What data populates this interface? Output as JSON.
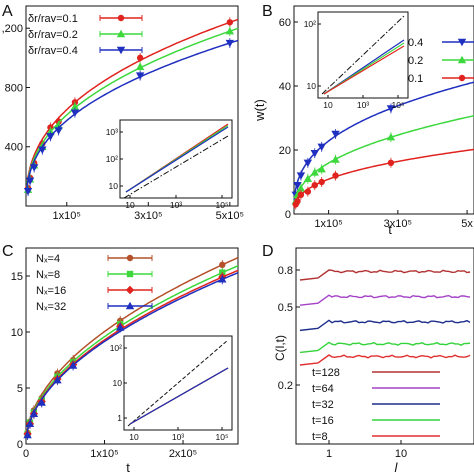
{
  "chart_data": [
    {
      "panel": "A",
      "type": "line",
      "xlabel": "",
      "ylabel": "",
      "x_ticks": [
        "1x10⁵",
        "3x10⁵",
        "5x10⁵"
      ],
      "y_ticks": [
        "400",
        "800",
        ",200"
      ],
      "xlim": [
        0,
        520000
      ],
      "ylim": [
        0,
        1350
      ],
      "series": [
        {
          "name": "δr/rav=0.1",
          "color": "#e0231f",
          "marker": "circle",
          "x": [
            5000,
            10000,
            20000,
            40000,
            60000,
            80000,
            120000,
            280000,
            500000
          ],
          "y": [
            120,
            190,
            290,
            420,
            530,
            570,
            700,
            1000,
            1240
          ]
        },
        {
          "name": "δr/rav=0.2",
          "color": "#3cd83c",
          "marker": "triangle-up",
          "x": [
            5000,
            10000,
            20000,
            40000,
            60000,
            80000,
            120000,
            280000,
            500000
          ],
          "y": [
            110,
            180,
            275,
            400,
            500,
            540,
            670,
            940,
            1180
          ]
        },
        {
          "name": "δr/rav=0.4",
          "color": "#1f2fbf",
          "marker": "triangle-down",
          "x": [
            5000,
            10000,
            20000,
            40000,
            60000,
            80000,
            120000,
            280000,
            500000
          ],
          "y": [
            100,
            170,
            260,
            380,
            470,
            510,
            630,
            880,
            1100
          ]
        }
      ],
      "inset": {
        "x_ticks": [
          "10",
          "10³",
          "10⁵"
        ],
        "y_ticks": [
          "10",
          "10²",
          "10³"
        ]
      }
    },
    {
      "panel": "B",
      "type": "line",
      "xlabel": "t",
      "ylabel": "w(t)",
      "x_ticks": [
        "1x10⁵",
        "3x10⁵",
        "5x"
      ],
      "y_ticks": [
        "0",
        "20",
        "40",
        "60"
      ],
      "xlim": [
        0,
        520000
      ],
      "ylim": [
        0,
        65
      ],
      "series": [
        {
          "name": "0.4",
          "color": "#1f2fbf",
          "marker": "triangle-down",
          "x": [
            5000,
            10000,
            20000,
            40000,
            60000,
            80000,
            120000,
            280000
          ],
          "y": [
            6,
            9,
            12,
            16,
            19,
            21,
            25,
            33
          ]
        },
        {
          "name": "0.2",
          "color": "#3cd83c",
          "marker": "triangle-up",
          "x": [
            5000,
            10000,
            20000,
            40000,
            60000,
            80000,
            120000,
            280000
          ],
          "y": [
            4,
            6,
            8,
            11,
            13,
            14,
            17,
            24
          ]
        },
        {
          "name": "0.1",
          "color": "#e0231f",
          "marker": "circle",
          "x": [
            5000,
            10000,
            20000,
            40000,
            60000,
            80000,
            120000,
            280000
          ],
          "y": [
            3,
            4,
            6,
            7,
            9,
            10,
            12,
            16
          ]
        }
      ],
      "inset": {
        "x_ticks": [
          "10",
          "10³",
          "10⁵"
        ],
        "y_ticks": [
          "10",
          "10²"
        ]
      }
    },
    {
      "panel": "C",
      "type": "line",
      "xlabel": "t",
      "ylabel": "",
      "x_ticks": [
        "0",
        "1x10⁵",
        "2x10⁵"
      ],
      "y_ticks": [
        "0",
        "5",
        "10",
        "15"
      ],
      "xlim": [
        0,
        270000
      ],
      "ylim": [
        0,
        17.5
      ],
      "series": [
        {
          "name": "Nₓ=4",
          "color": "#b5502a",
          "marker": "circle",
          "x": [
            2000,
            5000,
            10000,
            20000,
            40000,
            60000,
            120000,
            250000
          ],
          "y": [
            1.0,
            2.0,
            3.0,
            4.1,
            6.3,
            7.5,
            11.0,
            16.0
          ]
        },
        {
          "name": "Nₓ=8",
          "color": "#3cd83c",
          "marker": "square",
          "x": [
            2000,
            5000,
            10000,
            20000,
            40000,
            60000,
            120000,
            250000
          ],
          "y": [
            0.9,
            1.9,
            2.8,
            3.9,
            6.0,
            7.3,
            10.7,
            15.3
          ]
        },
        {
          "name": "Nₓ=16",
          "color": "#e0231f",
          "marker": "diamond",
          "x": [
            2000,
            5000,
            10000,
            20000,
            40000,
            60000,
            120000,
            250000
          ],
          "y": [
            0.9,
            1.8,
            2.7,
            3.8,
            5.8,
            7.1,
            10.5,
            14.9
          ]
        },
        {
          "name": "Nₓ=32",
          "color": "#1f2fbf",
          "marker": "triangle-up",
          "x": [
            2000,
            5000,
            10000,
            20000,
            40000,
            60000,
            120000,
            250000
          ],
          "y": [
            0.8,
            1.8,
            2.7,
            3.7,
            5.7,
            7.0,
            10.4,
            14.7
          ]
        }
      ],
      "inset": {
        "x_ticks": [
          "10",
          "10³",
          "10⁵"
        ],
        "y_ticks": [
          "1",
          "10",
          "10²"
        ]
      }
    },
    {
      "panel": "D",
      "type": "line",
      "xlabel": "l",
      "ylabel": "C(l,t)",
      "x_ticks": [
        "1",
        "10"
      ],
      "y_ticks": [
        "0.2",
        "0.5",
        "0.8"
      ],
      "series": [
        {
          "name": "t=128",
          "color": "#b23232",
          "level": 0.8
        },
        {
          "name": "t=64",
          "color": "#a442c8",
          "level": 0.64
        },
        {
          "name": "t=32",
          "color": "#1c2d8c",
          "level": 0.48
        },
        {
          "name": "t=16",
          "color": "#33d33a",
          "level": 0.34
        },
        {
          "name": "t=8",
          "color": "#e03030",
          "level": 0.26
        }
      ]
    }
  ]
}
